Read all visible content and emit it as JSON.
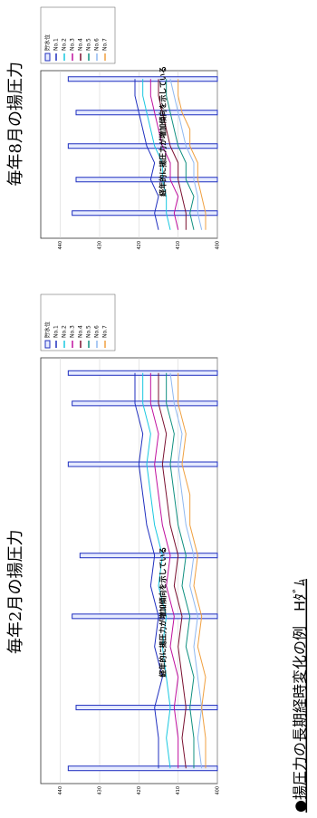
{
  "title": "●揚圧力の長期経時変化の例　Hﾀﾞﾑ",
  "chart_data": [
    {
      "type": "line",
      "title": "毎年2月の揚圧力",
      "annotation": "経年的に揚圧力が増加傾向を示している",
      "categories": [
        null,
        null,
        null,
        null,
        null,
        null,
        null,
        null,
        null,
        null,
        null,
        null,
        null,
        null
      ],
      "ylim": [
        400,
        445
      ],
      "yticks": [
        400,
        410,
        420,
        430,
        440
      ],
      "bars": {
        "name": "貯水位",
        "color": "#1f2fbf",
        "values": [
          438,
          null,
          436,
          null,
          null,
          437,
          null,
          435,
          null,
          null,
          438,
          null,
          437,
          438
        ]
      },
      "series": [
        {
          "name": "No.1",
          "color": "#1f2fbf",
          "values": [
            415,
            415,
            416,
            414,
            416,
            415,
            417,
            416,
            418,
            419,
            420,
            419,
            421,
            421
          ]
        },
        {
          "name": "No.2",
          "color": "#19c8e0",
          "values": [
            412,
            413,
            412,
            413,
            414,
            413,
            415,
            414,
            416,
            417,
            418,
            417,
            419,
            419
          ]
        },
        {
          "name": "No.3",
          "color": "#c0109f",
          "values": [
            410,
            410,
            411,
            410,
            412,
            411,
            413,
            412,
            414,
            415,
            416,
            415,
            417,
            417
          ]
        },
        {
          "name": "No.4",
          "color": "#7a1030",
          "values": [
            408,
            409,
            408,
            409,
            410,
            409,
            411,
            410,
            412,
            413,
            414,
            413,
            415,
            415
          ]
        },
        {
          "name": "No.5",
          "color": "#109080",
          "values": [
            406,
            406,
            407,
            406,
            408,
            407,
            409,
            408,
            410,
            411,
            412,
            411,
            413,
            413
          ]
        },
        {
          "name": "No.6",
          "color": "#8fb8f0",
          "values": [
            404,
            405,
            404,
            405,
            406,
            405,
            407,
            406,
            408,
            409,
            410,
            409,
            411,
            412
          ]
        },
        {
          "name": "No.7",
          "color": "#f0a040",
          "values": [
            403,
            403,
            404,
            403,
            405,
            404,
            406,
            405,
            407,
            407,
            409,
            408,
            410,
            410
          ]
        }
      ]
    },
    {
      "type": "line",
      "title": "毎年8月の揚圧力",
      "annotation": "経年的に揚圧力が増加傾向を示している",
      "categories": [
        null,
        null,
        null,
        null,
        null,
        null,
        null,
        null,
        null,
        null
      ],
      "ylim": [
        400,
        445
      ],
      "yticks": [
        400,
        410,
        420,
        430,
        440
      ],
      "bars": {
        "name": "貯水位",
        "color": "#1f2fbf",
        "values": [
          null,
          437,
          null,
          436,
          null,
          438,
          null,
          436,
          null,
          438
        ]
      },
      "series": [
        {
          "name": "No.1",
          "color": "#1f2fbf",
          "values": [
            415,
            416,
            415,
            417,
            416,
            418,
            419,
            420,
            421,
            421
          ]
        },
        {
          "name": "No.2",
          "color": "#19c8e0",
          "values": [
            412,
            413,
            413,
            414,
            414,
            416,
            417,
            418,
            419,
            419
          ]
        },
        {
          "name": "No.3",
          "color": "#c0109f",
          "values": [
            410,
            411,
            410,
            412,
            412,
            414,
            415,
            416,
            417,
            417
          ]
        },
        {
          "name": "No.4",
          "color": "#7a1030",
          "values": [
            408,
            408,
            409,
            410,
            410,
            412,
            413,
            414,
            415,
            415
          ]
        },
        {
          "name": "No.5",
          "color": "#109080",
          "values": [
            406,
            407,
            406,
            408,
            408,
            410,
            411,
            412,
            413,
            413
          ]
        },
        {
          "name": "No.6",
          "color": "#8fb8f0",
          "values": [
            404,
            405,
            405,
            406,
            406,
            408,
            409,
            410,
            411,
            412
          ]
        },
        {
          "name": "No.7",
          "color": "#f0a040",
          "values": [
            403,
            403,
            404,
            405,
            405,
            407,
            407,
            409,
            410,
            410
          ]
        }
      ]
    }
  ]
}
